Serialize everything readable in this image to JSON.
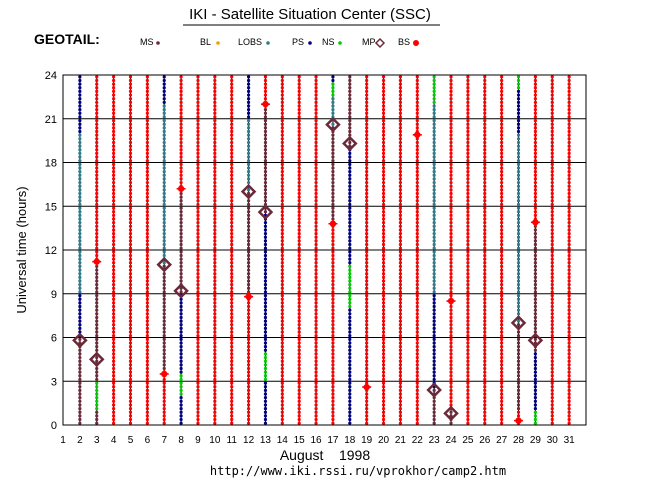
{
  "header": {
    "title": "IKI - Satellite Situation Center (SSC)",
    "satellite": "GEOTAIL:",
    "url": "http://www.iki.rssi.ru/vprokhor/camp2.htm"
  },
  "legend": [
    {
      "label": "MS",
      "color": "#6b2a3a",
      "marker": "dot"
    },
    {
      "label": "BL",
      "color": "#f0a000",
      "marker": "dot"
    },
    {
      "label": "LOBS",
      "color": "#2e7d8c",
      "marker": "dot"
    },
    {
      "label": "PS",
      "color": "#000080",
      "marker": "dot"
    },
    {
      "label": "NS",
      "color": "#00cc00",
      "marker": "dot"
    },
    {
      "label": "MP",
      "color": "#6b2a3a",
      "marker": "diamond"
    },
    {
      "label": "BS",
      "color": "#ff0000",
      "marker": "star"
    }
  ],
  "chart_data": {
    "type": "scatter",
    "title": "IKI - Satellite Situation Center (SSC)",
    "xlabel": "August    1998",
    "ylabel": "Universal time (hours)",
    "xlim": [
      1,
      32
    ],
    "ylim": [
      0,
      24
    ],
    "x_ticks": [
      1,
      2,
      3,
      4,
      5,
      6,
      7,
      8,
      9,
      10,
      11,
      12,
      13,
      14,
      15,
      16,
      17,
      18,
      19,
      20,
      21,
      22,
      23,
      24,
      25,
      26,
      27,
      28,
      29,
      30,
      31
    ],
    "y_ticks": [
      0,
      3,
      6,
      9,
      12,
      15,
      18,
      21,
      24
    ],
    "grid": true,
    "day_columns": [
      {
        "day": 2,
        "segments": [
          {
            "region": "MS",
            "from": 0,
            "to": 6
          },
          {
            "region": "PS",
            "from": 6,
            "to": 9
          },
          {
            "region": "LOBS",
            "from": 9,
            "to": 20
          },
          {
            "region": "PS",
            "from": 20,
            "to": 24
          }
        ]
      },
      {
        "day": 3,
        "segments": [
          {
            "region": "MS",
            "from": 0,
            "to": 1
          },
          {
            "region": "NS",
            "from": 1,
            "to": 3
          },
          {
            "region": "MS",
            "from": 3,
            "to": 11
          },
          {
            "region": "BS",
            "from": 11,
            "to": 24
          }
        ]
      },
      {
        "day": 4,
        "segments": [
          {
            "region": "BS",
            "from": 0,
            "to": 24
          }
        ]
      },
      {
        "day": 5,
        "segments": [
          {
            "region": "BS",
            "from": 0,
            "to": 24
          }
        ]
      },
      {
        "day": 6,
        "segments": [
          {
            "region": "BS",
            "from": 0,
            "to": 24
          }
        ]
      },
      {
        "day": 7,
        "segments": [
          {
            "region": "BS",
            "from": 0,
            "to": 3.5
          },
          {
            "region": "MS",
            "from": 3.5,
            "to": 11
          },
          {
            "region": "LOBS",
            "from": 11,
            "to": 22
          },
          {
            "region": "PS",
            "from": 22,
            "to": 24
          }
        ]
      },
      {
        "day": 8,
        "segments": [
          {
            "region": "PS",
            "from": 0,
            "to": 2
          },
          {
            "region": "NS",
            "from": 2,
            "to": 3.5
          },
          {
            "region": "PS",
            "from": 3.5,
            "to": 9
          },
          {
            "region": "MS",
            "from": 9,
            "to": 16
          },
          {
            "region": "BS",
            "from": 16,
            "to": 24
          }
        ]
      },
      {
        "day": 9,
        "segments": [
          {
            "region": "BS",
            "from": 0,
            "to": 24
          }
        ]
      },
      {
        "day": 10,
        "segments": [
          {
            "region": "BS",
            "from": 0,
            "to": 24
          }
        ]
      },
      {
        "day": 11,
        "segments": [
          {
            "region": "BS",
            "from": 0,
            "to": 24
          }
        ]
      },
      {
        "day": 12,
        "segments": [
          {
            "region": "BS",
            "from": 0,
            "to": 9
          },
          {
            "region": "MS",
            "from": 9,
            "to": 16
          },
          {
            "region": "LOBS",
            "from": 16,
            "to": 21
          },
          {
            "region": "PS",
            "from": 21,
            "to": 24
          }
        ]
      },
      {
        "day": 13,
        "segments": [
          {
            "region": "PS",
            "from": 0,
            "to": 3
          },
          {
            "region": "NS",
            "from": 3,
            "to": 5
          },
          {
            "region": "PS",
            "from": 5,
            "to": 14.5
          },
          {
            "region": "MS",
            "from": 14.5,
            "to": 22
          },
          {
            "region": "BS",
            "from": 22,
            "to": 24
          }
        ]
      },
      {
        "day": 14,
        "segments": [
          {
            "region": "BS",
            "from": 0,
            "to": 24
          }
        ]
      },
      {
        "day": 15,
        "segments": [
          {
            "region": "BS",
            "from": 0,
            "to": 24
          }
        ]
      },
      {
        "day": 16,
        "segments": [
          {
            "region": "BS",
            "from": 0,
            "to": 24
          }
        ]
      },
      {
        "day": 17,
        "segments": [
          {
            "region": "BS",
            "from": 0,
            "to": 14
          },
          {
            "region": "MS",
            "from": 14,
            "to": 20.5
          },
          {
            "region": "LOBS",
            "from": 20.5,
            "to": 22.5
          },
          {
            "region": "NS",
            "from": 22.5,
            "to": 23.5
          },
          {
            "region": "PS",
            "from": 23.5,
            "to": 24
          }
        ]
      },
      {
        "day": 18,
        "segments": [
          {
            "region": "PS",
            "from": 0,
            "to": 8
          },
          {
            "region": "NS",
            "from": 8,
            "to": 11
          },
          {
            "region": "PS",
            "from": 11,
            "to": 19
          },
          {
            "region": "MS",
            "from": 19,
            "to": 24
          }
        ]
      },
      {
        "day": 19,
        "segments": [
          {
            "region": "BS",
            "from": 0,
            "to": 24
          }
        ]
      },
      {
        "day": 20,
        "segments": [
          {
            "region": "BS",
            "from": 0,
            "to": 24
          }
        ]
      },
      {
        "day": 21,
        "segments": [
          {
            "region": "BS",
            "from": 0,
            "to": 24
          }
        ]
      },
      {
        "day": 22,
        "segments": [
          {
            "region": "BS",
            "from": 0,
            "to": 24
          }
        ]
      },
      {
        "day": 23,
        "segments": [
          {
            "region": "MS",
            "from": 0,
            "to": 2.5
          },
          {
            "region": "PS",
            "from": 2.5,
            "to": 9
          },
          {
            "region": "LOBS",
            "from": 9,
            "to": 22
          },
          {
            "region": "NS",
            "from": 22,
            "to": 24
          }
        ]
      },
      {
        "day": 24,
        "segments": [
          {
            "region": "MS",
            "from": 0,
            "to": 1
          },
          {
            "region": "BS",
            "from": 1,
            "to": 24
          }
        ]
      },
      {
        "day": 25,
        "segments": [
          {
            "region": "BS",
            "from": 0,
            "to": 24
          }
        ]
      },
      {
        "day": 26,
        "segments": [
          {
            "region": "BS",
            "from": 0,
            "to": 24
          }
        ]
      },
      {
        "day": 27,
        "segments": [
          {
            "region": "BS",
            "from": 0,
            "to": 24
          }
        ]
      },
      {
        "day": 28,
        "segments": [
          {
            "region": "BS",
            "from": 0,
            "to": 1
          },
          {
            "region": "MS",
            "from": 1,
            "to": 7
          },
          {
            "region": "LOBS",
            "from": 7,
            "to": 20
          },
          {
            "region": "PS",
            "from": 20,
            "to": 23
          },
          {
            "region": "NS",
            "from": 23,
            "to": 24
          }
        ]
      },
      {
        "day": 29,
        "segments": [
          {
            "region": "NS",
            "from": 0,
            "to": 1
          },
          {
            "region": "PS",
            "from": 1,
            "to": 5
          },
          {
            "region": "MS",
            "from": 5,
            "to": 14
          },
          {
            "region": "BS",
            "from": 14,
            "to": 24
          }
        ]
      },
      {
        "day": 30,
        "segments": [
          {
            "region": "BS",
            "from": 0,
            "to": 24
          }
        ]
      },
      {
        "day": 31,
        "segments": [
          {
            "region": "BS",
            "from": 0,
            "to": 24
          }
        ]
      }
    ],
    "markers": [
      {
        "day": 2,
        "hour": 5.8,
        "type": "MP"
      },
      {
        "day": 3,
        "hour": 4.5,
        "type": "MP"
      },
      {
        "day": 3,
        "hour": 11.2,
        "type": "BS"
      },
      {
        "day": 7,
        "hour": 3.5,
        "type": "BS"
      },
      {
        "day": 7,
        "hour": 11,
        "type": "MP"
      },
      {
        "day": 8,
        "hour": 9.2,
        "type": "MP"
      },
      {
        "day": 8,
        "hour": 16.2,
        "type": "BS"
      },
      {
        "day": 12,
        "hour": 8.8,
        "type": "BS"
      },
      {
        "day": 12,
        "hour": 16,
        "type": "MP"
      },
      {
        "day": 13,
        "hour": 14.6,
        "type": "MP"
      },
      {
        "day": 13,
        "hour": 22,
        "type": "BS"
      },
      {
        "day": 17,
        "hour": 13.8,
        "type": "BS"
      },
      {
        "day": 17,
        "hour": 20.6,
        "type": "MP"
      },
      {
        "day": 18,
        "hour": 19.3,
        "type": "MP"
      },
      {
        "day": 19,
        "hour": 2.6,
        "type": "BS"
      },
      {
        "day": 22,
        "hour": 19.9,
        "type": "BS"
      },
      {
        "day": 23,
        "hour": 2.4,
        "type": "MP"
      },
      {
        "day": 24,
        "hour": 0.8,
        "type": "MP"
      },
      {
        "day": 24,
        "hour": 8.5,
        "type": "BS"
      },
      {
        "day": 28,
        "hour": 0.3,
        "type": "BS"
      },
      {
        "day": 28,
        "hour": 7,
        "type": "MP"
      },
      {
        "day": 29,
        "hour": 5.8,
        "type": "MP"
      },
      {
        "day": 29,
        "hour": 13.9,
        "type": "BS"
      }
    ]
  }
}
